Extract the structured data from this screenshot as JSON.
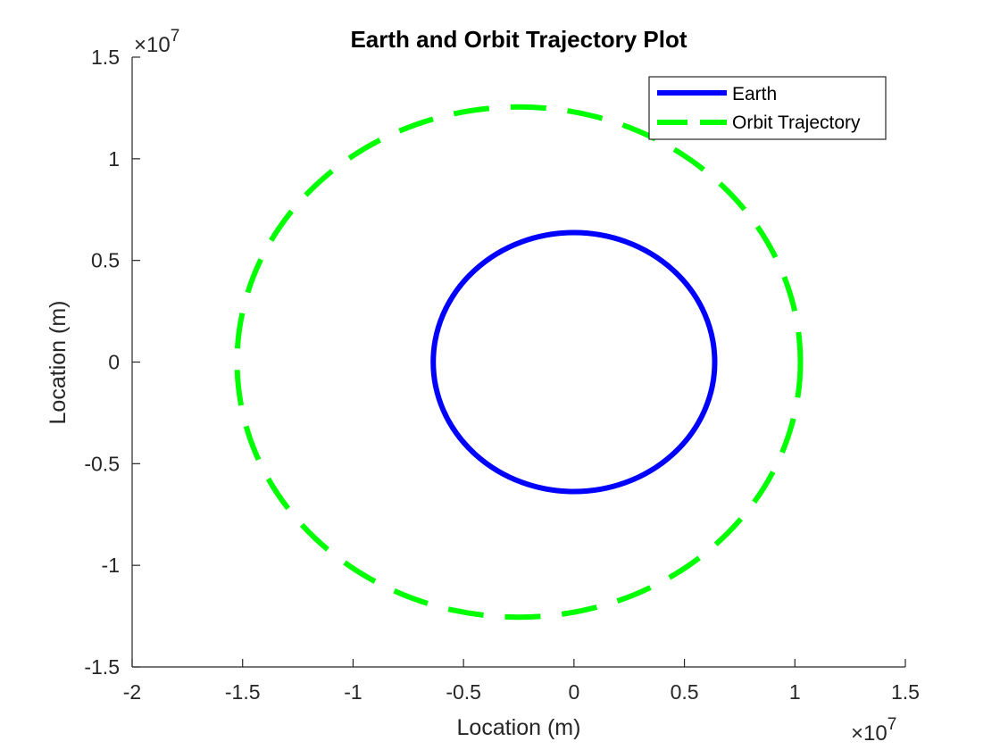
{
  "chart_data": {
    "type": "line",
    "title": "Earth and Orbit Trajectory Plot",
    "xlabel": "Location (m)",
    "ylabel": "Location (m)",
    "xlim": [
      -2,
      1.5
    ],
    "ylim": [
      -1.5,
      1.5
    ],
    "axis_multiplier": {
      "base": "×10",
      "exponent": "7"
    },
    "xticks": [
      -2,
      -1.5,
      -1,
      -0.5,
      0,
      0.5,
      1,
      1.5
    ],
    "xtick_labels": [
      "-2",
      "-1.5",
      "-1",
      "-0.5",
      "0",
      "0.5",
      "1",
      "1.5"
    ],
    "yticks": [
      -1.5,
      -1,
      -0.5,
      0,
      0.5,
      1,
      1.5
    ],
    "ytick_labels": [
      "-1.5",
      "-1",
      "-0.5",
      "0",
      "0.5",
      "1",
      "1.5"
    ],
    "grid": false,
    "legend_position": "top-right",
    "series": [
      {
        "name": "Earth",
        "shape": "circle",
        "center": [
          0,
          0
        ],
        "radius": 0.6371,
        "color": "#0000ff",
        "line_style": "solid"
      },
      {
        "name": "Orbit Trajectory",
        "shape": "ellipse",
        "center": [
          -0.25,
          0
        ],
        "semi_axes": [
          1.275,
          1.255
        ],
        "color": "#00ff00",
        "line_style": "dashed"
      }
    ]
  }
}
